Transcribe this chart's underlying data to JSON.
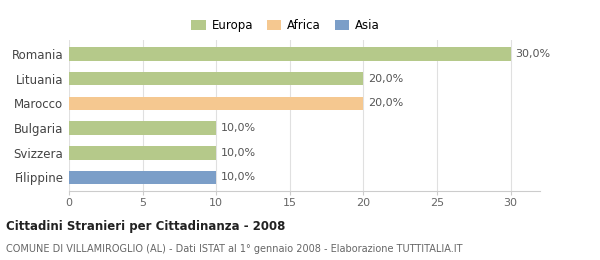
{
  "categories": [
    "Romania",
    "Lituania",
    "Marocco",
    "Bulgaria",
    "Svizzera",
    "Filippine"
  ],
  "values": [
    30.0,
    20.0,
    20.0,
    10.0,
    10.0,
    10.0
  ],
  "colors": [
    "#b5c98a",
    "#b5c98a",
    "#f5c890",
    "#b5c98a",
    "#b5c98a",
    "#7b9ec8"
  ],
  "legend_labels": [
    "Europa",
    "Africa",
    "Asia"
  ],
  "legend_colors": [
    "#b5c98a",
    "#f5c890",
    "#7b9ec8"
  ],
  "xlim": [
    0,
    32
  ],
  "xticks": [
    0,
    5,
    10,
    15,
    20,
    25,
    30
  ],
  "title_bold": "Cittadini Stranieri per Cittadinanza - 2008",
  "subtitle": "COMUNE DI VILLAMIROGLIO (AL) - Dati ISTAT al 1° gennaio 2008 - Elaborazione TUTTITALIA.IT",
  "background_color": "#ffffff",
  "grid_color": "#e0e0e0",
  "figsize": [
    6.0,
    2.6
  ],
  "dpi": 100
}
